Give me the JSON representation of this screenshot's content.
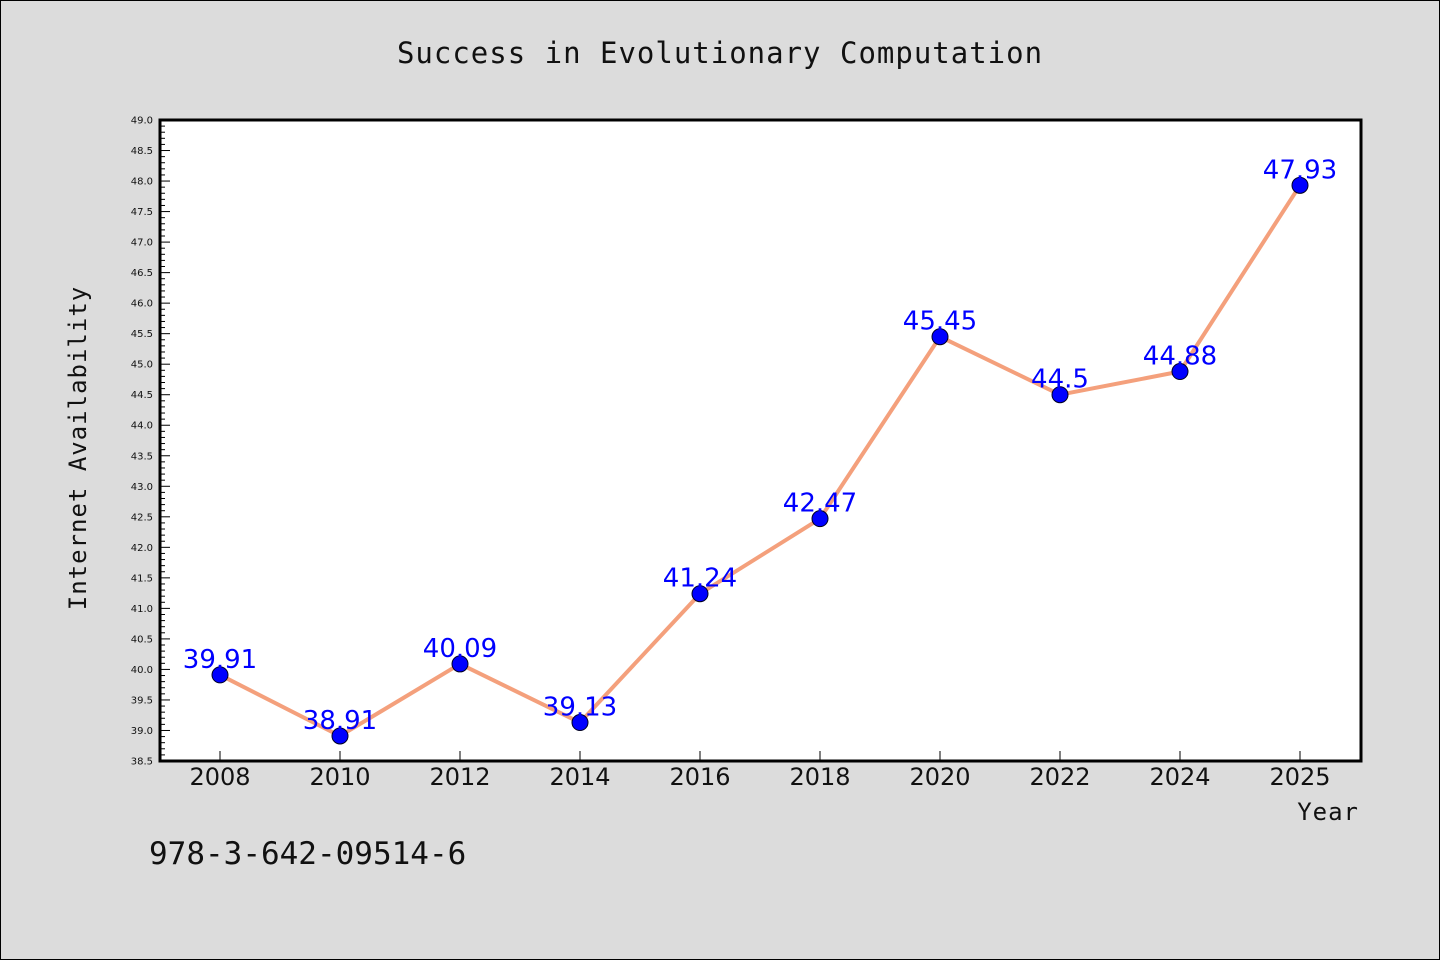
{
  "chart_data": {
    "type": "line",
    "title": "Success in Evolutionary Computation",
    "xlabel": "Year",
    "ylabel": "Internet Availability",
    "categories": [
      "2008",
      "2010",
      "2012",
      "2014",
      "2016",
      "2018",
      "2020",
      "2022",
      "2024",
      "2025"
    ],
    "series": [
      {
        "values": [
          39.91,
          38.91,
          40.09,
          39.13,
          41.24,
          42.47,
          45.45,
          44.5,
          44.88,
          47.93
        ]
      }
    ],
    "data_labels": [
      "39.91",
      "38.91",
      "40.09",
      "39.13",
      "41.24",
      "42.47",
      "45.45",
      "44.5",
      "44.88",
      "47.93"
    ],
    "ylim": [
      38.5,
      49.0
    ],
    "yticks": [
      "38.5",
      "39.0",
      "39.5",
      "40.0",
      "40.5",
      "41.0",
      "41.5",
      "42.0",
      "42.5",
      "43.0",
      "43.5",
      "44.0",
      "44.5",
      "45.0",
      "45.5",
      "46.0",
      "46.5",
      "47.0",
      "47.5",
      "48.0",
      "48.5",
      "49.0"
    ],
    "grid": false,
    "line_color": "#f4a07c",
    "marker_color": "#0000ff",
    "label_color": "#0000ff",
    "background_color": "#dcdcdc",
    "plot_background_color": "#ffffff"
  },
  "footer": {
    "isbn": "978-3-642-09514-6"
  }
}
